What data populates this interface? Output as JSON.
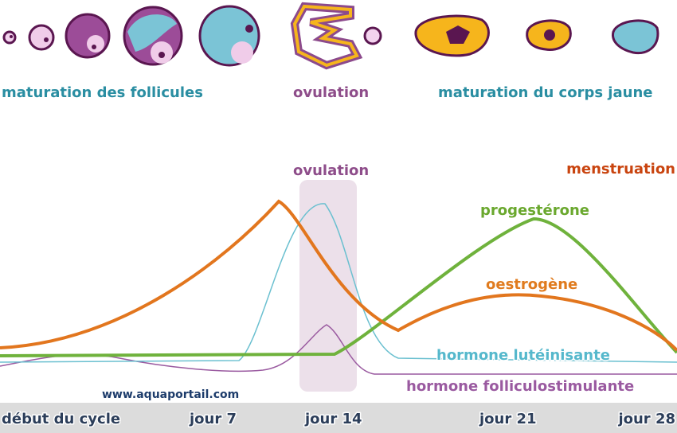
{
  "top_labels": {
    "follicles": "maturation des follicules",
    "ovulation": "ovulation",
    "corpus_luteum": "maturation du corps jaune"
  },
  "chart_labels": {
    "ovulation": "ovulation",
    "menstruation": "menstruation",
    "progesterone": "progestérone",
    "oestrogen": "oestrogène",
    "lh": "hormone lutéinisante",
    "fsh": "hormone folliculostimulante",
    "website": "www.aquaportail.com"
  },
  "timeline": [
    "début du cycle",
    "jour 7",
    "jour 14",
    "jour 21",
    "jour 28"
  ]
}
